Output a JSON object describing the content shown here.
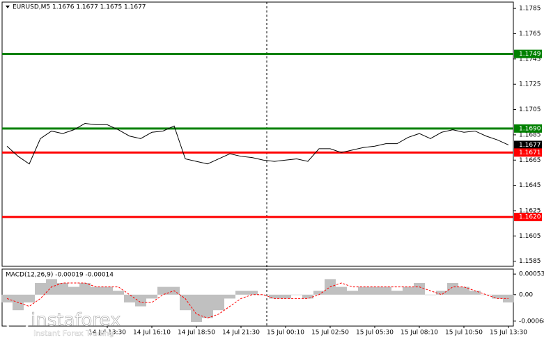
{
  "chart_data": {
    "type": "line",
    "title": "EURUSD,M5  1.1676 1.1677 1.1675 1.1677",
    "watermark": "instaforex",
    "watermark_sub": "Instant Forex Trading",
    "categories": [
      null,
      null,
      null,
      null,
      null,
      null,
      null,
      null,
      null,
      "14 Jul 13:30",
      null,
      null,
      null,
      "14 Jul 16:10",
      null,
      null,
      null,
      "14 Jul 18:50",
      null,
      null,
      null,
      "14 Jul 21:30",
      null,
      null,
      null,
      "15 Jul 00:10",
      null,
      null,
      null,
      "15 Jul 02:50",
      null,
      null,
      null,
      "15 Jul 05:30",
      null,
      null,
      null,
      "15 Jul 08:10",
      null,
      null,
      null,
      "15 Jul 10:50",
      null,
      null,
      null,
      "15 Jul 13:30"
    ],
    "series": [
      {
        "name": "EURUSD",
        "color": "#000000",
        "values": [
          1.1676,
          1.1668,
          1.1662,
          1.1682,
          1.1688,
          1.1686,
          1.1689,
          1.1694,
          1.1693,
          1.1693,
          1.1689,
          1.1684,
          1.1682,
          1.1687,
          1.1688,
          1.1692,
          1.1666,
          1.1664,
          1.1662,
          1.1666,
          1.167,
          1.1668,
          1.1667,
          1.1665,
          1.1664,
          1.1665,
          1.1666,
          1.1664,
          1.1674,
          1.1674,
          1.1671,
          1.1673,
          1.1675,
          1.1676,
          1.1678,
          1.1678,
          1.1683,
          1.1686,
          1.1682,
          1.1687,
          1.1689,
          1.1687,
          1.1688,
          1.1684,
          1.1681,
          1.1677
        ]
      }
    ],
    "ylim": [
      1.1581,
      1.179
    ],
    "yticks": [
      1.1785,
      1.1765,
      1.1745,
      1.1725,
      1.1705,
      1.1685,
      1.1665,
      1.1645,
      1.1625,
      1.1605,
      1.1585
    ],
    "levels": [
      {
        "value": 1.1749,
        "label": "1.1749",
        "color": "#008000"
      },
      {
        "value": 1.169,
        "label": "1.1690",
        "color": "#008000"
      },
      {
        "value": 1.1677,
        "label": "1.1677",
        "color": "#000000"
      },
      {
        "value": 1.1671,
        "label": "1.1671",
        "color": "#ff0000"
      },
      {
        "value": 1.162,
        "label": "1.1620",
        "color": "#ff0000"
      }
    ],
    "macd": {
      "title": "MACD(12,26,9) -0.00019 -0.00014",
      "ylim": [
        -0.00079,
        0.00064
      ],
      "yticks": [
        0.00053,
        {
          "value": 0,
          "label": "0.00"
        },
        -0.00068
      ],
      "histogram": {
        "color": "#c0c0c0",
        "values": [
          -0.0002,
          -0.0004,
          -0.0002,
          0.0003,
          0.0004,
          0.0003,
          0.0002,
          0.0003,
          0.0002,
          0.0002,
          0.0001,
          -0.0002,
          -0.0003,
          -0.0001,
          0.0002,
          0.0002,
          -0.0004,
          -0.0007,
          -0.0006,
          -0.0004,
          -0.0001,
          0.0001,
          0.0001,
          0,
          -0.0001,
          -0.0001,
          0,
          -0.0001,
          0.0001,
          0.0004,
          0.0002,
          0.0001,
          0.0002,
          0.0002,
          0.0002,
          0.0001,
          0.0002,
          0.0003,
          0,
          0.0001,
          0.0003,
          0.0002,
          0.0001,
          0,
          -0.0001,
          -0.0002
        ]
      },
      "signal": {
        "color": "#ff0000",
        "values": [
          -0.0001,
          -0.0002,
          -0.0003,
          -0.0001,
          0.0002,
          0.0003,
          0.0003,
          0.0003,
          0.0002,
          0.0002,
          0.0002,
          0,
          -0.0002,
          -0.0002,
          0,
          0.0001,
          -0.0001,
          -0.0005,
          -0.0006,
          -0.0005,
          -0.0003,
          -0.0001,
          0,
          0,
          -0.0001,
          -0.0001,
          -0.0001,
          -0.0001,
          0,
          0.0002,
          0.0003,
          0.0002,
          0.0002,
          0.0002,
          0.0002,
          0.0002,
          0.0002,
          0.0002,
          0.0001,
          0,
          0.0002,
          0.0002,
          0.0001,
          0,
          -0.0001,
          -0.0001
        ]
      }
    }
  }
}
